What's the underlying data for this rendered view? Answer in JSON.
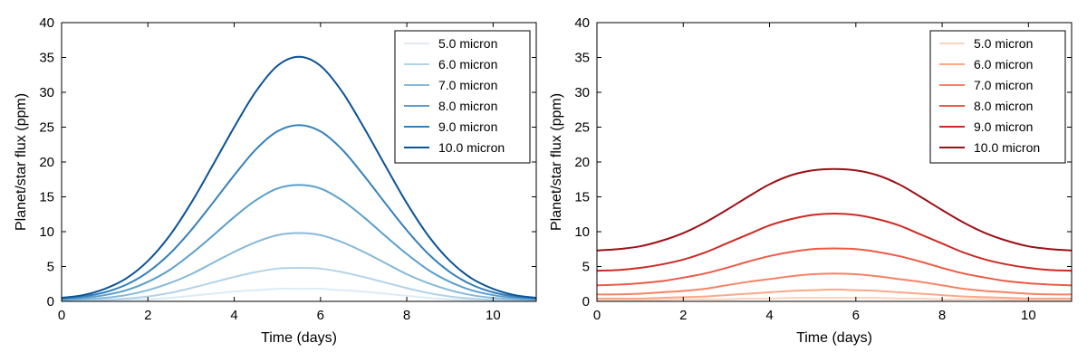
{
  "chart_data": [
    {
      "type": "line",
      "title": "",
      "xlabel": "Time (days)",
      "ylabel": "Planet/star flux (ppm)",
      "xlim": [
        0,
        11
      ],
      "ylim": [
        0,
        40
      ],
      "xticks": [
        0,
        2,
        4,
        6,
        8,
        10
      ],
      "yticks": [
        0,
        5,
        10,
        15,
        20,
        25,
        30,
        35,
        40
      ],
      "legend_position": "top-right",
      "x": [
        0,
        0.5,
        1,
        1.5,
        2,
        2.5,
        3,
        3.5,
        4,
        4.5,
        5,
        5.5,
        6,
        6.5,
        7,
        7.5,
        8,
        8.5,
        9,
        9.5,
        10,
        10.5,
        11
      ],
      "series": [
        {
          "name": "5.0 micron",
          "color": "#deebf7",
          "values": [
            0.1,
            0.1,
            0.1,
            0.2,
            0.3,
            0.5,
            0.8,
            1.1,
            1.4,
            1.6,
            1.8,
            1.8,
            1.8,
            1.6,
            1.4,
            1.1,
            0.8,
            0.5,
            0.3,
            0.2,
            0.1,
            0.1,
            0.1
          ]
        },
        {
          "name": "6.0 micron",
          "color": "#b3d3e8",
          "values": [
            0.1,
            0.1,
            0.2,
            0.4,
            0.7,
            1.2,
            1.9,
            2.7,
            3.5,
            4.2,
            4.7,
            4.8,
            4.7,
            4.2,
            3.5,
            2.7,
            1.9,
            1.2,
            0.7,
            0.4,
            0.2,
            0.1,
            0.1
          ]
        },
        {
          "name": "7.0 micron",
          "color": "#87b9da",
          "values": [
            0.2,
            0.3,
            0.5,
            0.9,
            1.6,
            2.6,
            3.9,
            5.5,
            7.1,
            8.5,
            9.5,
            9.8,
            9.5,
            8.5,
            7.1,
            5.5,
            3.9,
            2.6,
            1.6,
            0.9,
            0.5,
            0.3,
            0.2
          ]
        },
        {
          "name": "8.0 micron",
          "color": "#5a9fcd",
          "values": [
            0.3,
            0.5,
            0.9,
            1.6,
            2.8,
            4.5,
            6.8,
            9.4,
            12.1,
            14.5,
            16.2,
            16.7,
            16.2,
            14.5,
            12.1,
            9.4,
            6.8,
            4.5,
            2.8,
            1.6,
            0.9,
            0.5,
            0.3
          ]
        },
        {
          "name": "9.0 micron",
          "color": "#3580ba",
          "values": [
            0.4,
            0.7,
            1.3,
            2.4,
            4.2,
            6.8,
            10.2,
            14.1,
            18.1,
            21.8,
            24.4,
            25.3,
            24.4,
            21.8,
            18.1,
            14.1,
            10.2,
            6.8,
            4.2,
            2.4,
            1.3,
            0.7,
            0.4
          ]
        },
        {
          "name": "10.0 micron",
          "color": "#0c5397",
          "values": [
            0.5,
            0.9,
            1.8,
            3.3,
            5.8,
            9.4,
            14.1,
            19.5,
            25.0,
            30.1,
            33.8,
            35.1,
            33.8,
            30.1,
            25.0,
            19.5,
            14.1,
            9.4,
            5.8,
            3.3,
            1.8,
            0.9,
            0.5
          ]
        }
      ]
    },
    {
      "type": "line",
      "title": "",
      "xlabel": "Time (days)",
      "ylabel": "Planet/star flux (ppm)",
      "xlim": [
        0,
        11
      ],
      "ylim": [
        0,
        40
      ],
      "xticks": [
        0,
        2,
        4,
        6,
        8,
        10
      ],
      "yticks": [
        0,
        5,
        10,
        15,
        20,
        25,
        30,
        35,
        40
      ],
      "legend_position": "top-right",
      "x": [
        0,
        0.5,
        1,
        1.5,
        2,
        2.5,
        3,
        3.5,
        4,
        4.5,
        5,
        5.5,
        6,
        6.5,
        7,
        7.5,
        8,
        8.5,
        9,
        9.5,
        10,
        10.5,
        11
      ],
      "series": [
        {
          "name": "5.0 micron",
          "color": "#fcd5c1",
          "values": [
            0.2,
            0.2,
            0.2,
            0.2,
            0.3,
            0.3,
            0.3,
            0.4,
            0.4,
            0.5,
            0.5,
            0.5,
            0.5,
            0.5,
            0.4,
            0.4,
            0.3,
            0.3,
            0.3,
            0.2,
            0.2,
            0.2,
            0.2
          ]
        },
        {
          "name": "6.0 micron",
          "color": "#fca889",
          "values": [
            0.4,
            0.4,
            0.4,
            0.5,
            0.6,
            0.7,
            0.9,
            1.1,
            1.3,
            1.5,
            1.6,
            1.7,
            1.6,
            1.5,
            1.3,
            1.1,
            0.9,
            0.7,
            0.6,
            0.5,
            0.4,
            0.4,
            0.4
          ]
        },
        {
          "name": "7.0 micron",
          "color": "#f88264",
          "values": [
            1.0,
            1.0,
            1.1,
            1.3,
            1.5,
            1.8,
            2.3,
            2.8,
            3.2,
            3.6,
            3.9,
            4.0,
            3.9,
            3.6,
            3.2,
            2.8,
            2.3,
            1.8,
            1.5,
            1.3,
            1.1,
            1.0,
            1.0
          ]
        },
        {
          "name": "8.0 micron",
          "color": "#ed5a45",
          "values": [
            2.3,
            2.4,
            2.6,
            2.9,
            3.4,
            4.0,
            4.8,
            5.7,
            6.5,
            7.1,
            7.5,
            7.6,
            7.5,
            7.1,
            6.5,
            5.7,
            4.8,
            4.0,
            3.4,
            2.9,
            2.6,
            2.4,
            2.3
          ]
        },
        {
          "name": "9.0 micron",
          "color": "#cc2a24",
          "values": [
            4.4,
            4.5,
            4.8,
            5.3,
            6.0,
            7.0,
            8.3,
            9.6,
            10.9,
            11.8,
            12.4,
            12.6,
            12.4,
            11.8,
            10.9,
            9.6,
            8.3,
            7.0,
            6.0,
            5.3,
            4.8,
            4.5,
            4.4
          ]
        },
        {
          "name": "10.0 micron",
          "color": "#9c1016",
          "values": [
            7.3,
            7.5,
            7.9,
            8.7,
            9.8,
            11.3,
            13.1,
            15.0,
            16.8,
            18.1,
            18.8,
            19.0,
            18.8,
            18.1,
            16.8,
            15.0,
            13.1,
            11.3,
            9.8,
            8.7,
            7.9,
            7.5,
            7.3
          ]
        }
      ]
    }
  ]
}
